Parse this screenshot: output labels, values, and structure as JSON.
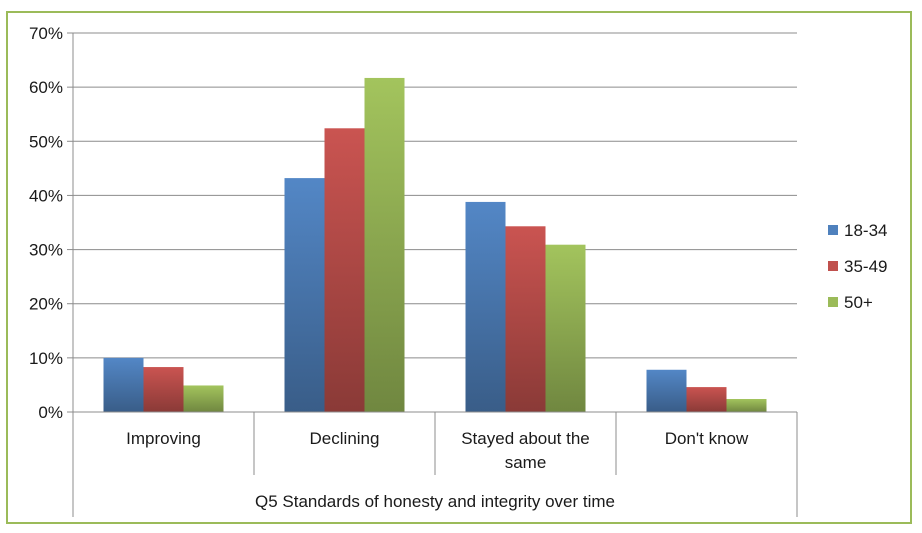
{
  "chart_data": {
    "type": "bar",
    "categories": [
      "Improving",
      "Declining",
      "Stayed about the same",
      "Don't know"
    ],
    "category_lines": [
      [
        "Improving"
      ],
      [
        "Declining"
      ],
      [
        "Stayed about the",
        "same"
      ],
      [
        "Don't know"
      ]
    ],
    "group_label": "Q5 Standards of honesty and integrity over time",
    "series": [
      {
        "name": "18-34",
        "values": [
          10,
          43.2,
          38.8,
          7.8
        ],
        "color": "#4f81bd"
      },
      {
        "name": "35-49",
        "values": [
          8.3,
          52.4,
          34.3,
          4.6
        ],
        "color": "#c0504d"
      },
      {
        "name": "50+",
        "values": [
          4.9,
          61.7,
          30.9,
          2.4
        ],
        "color": "#9bbb59"
      }
    ],
    "yticks": [
      "0%",
      "10%",
      "20%",
      "30%",
      "40%",
      "50%",
      "60%",
      "70%"
    ],
    "ylim": [
      0,
      70
    ],
    "grid": true,
    "legend_position": "right",
    "border_color": "#9bbb59"
  }
}
